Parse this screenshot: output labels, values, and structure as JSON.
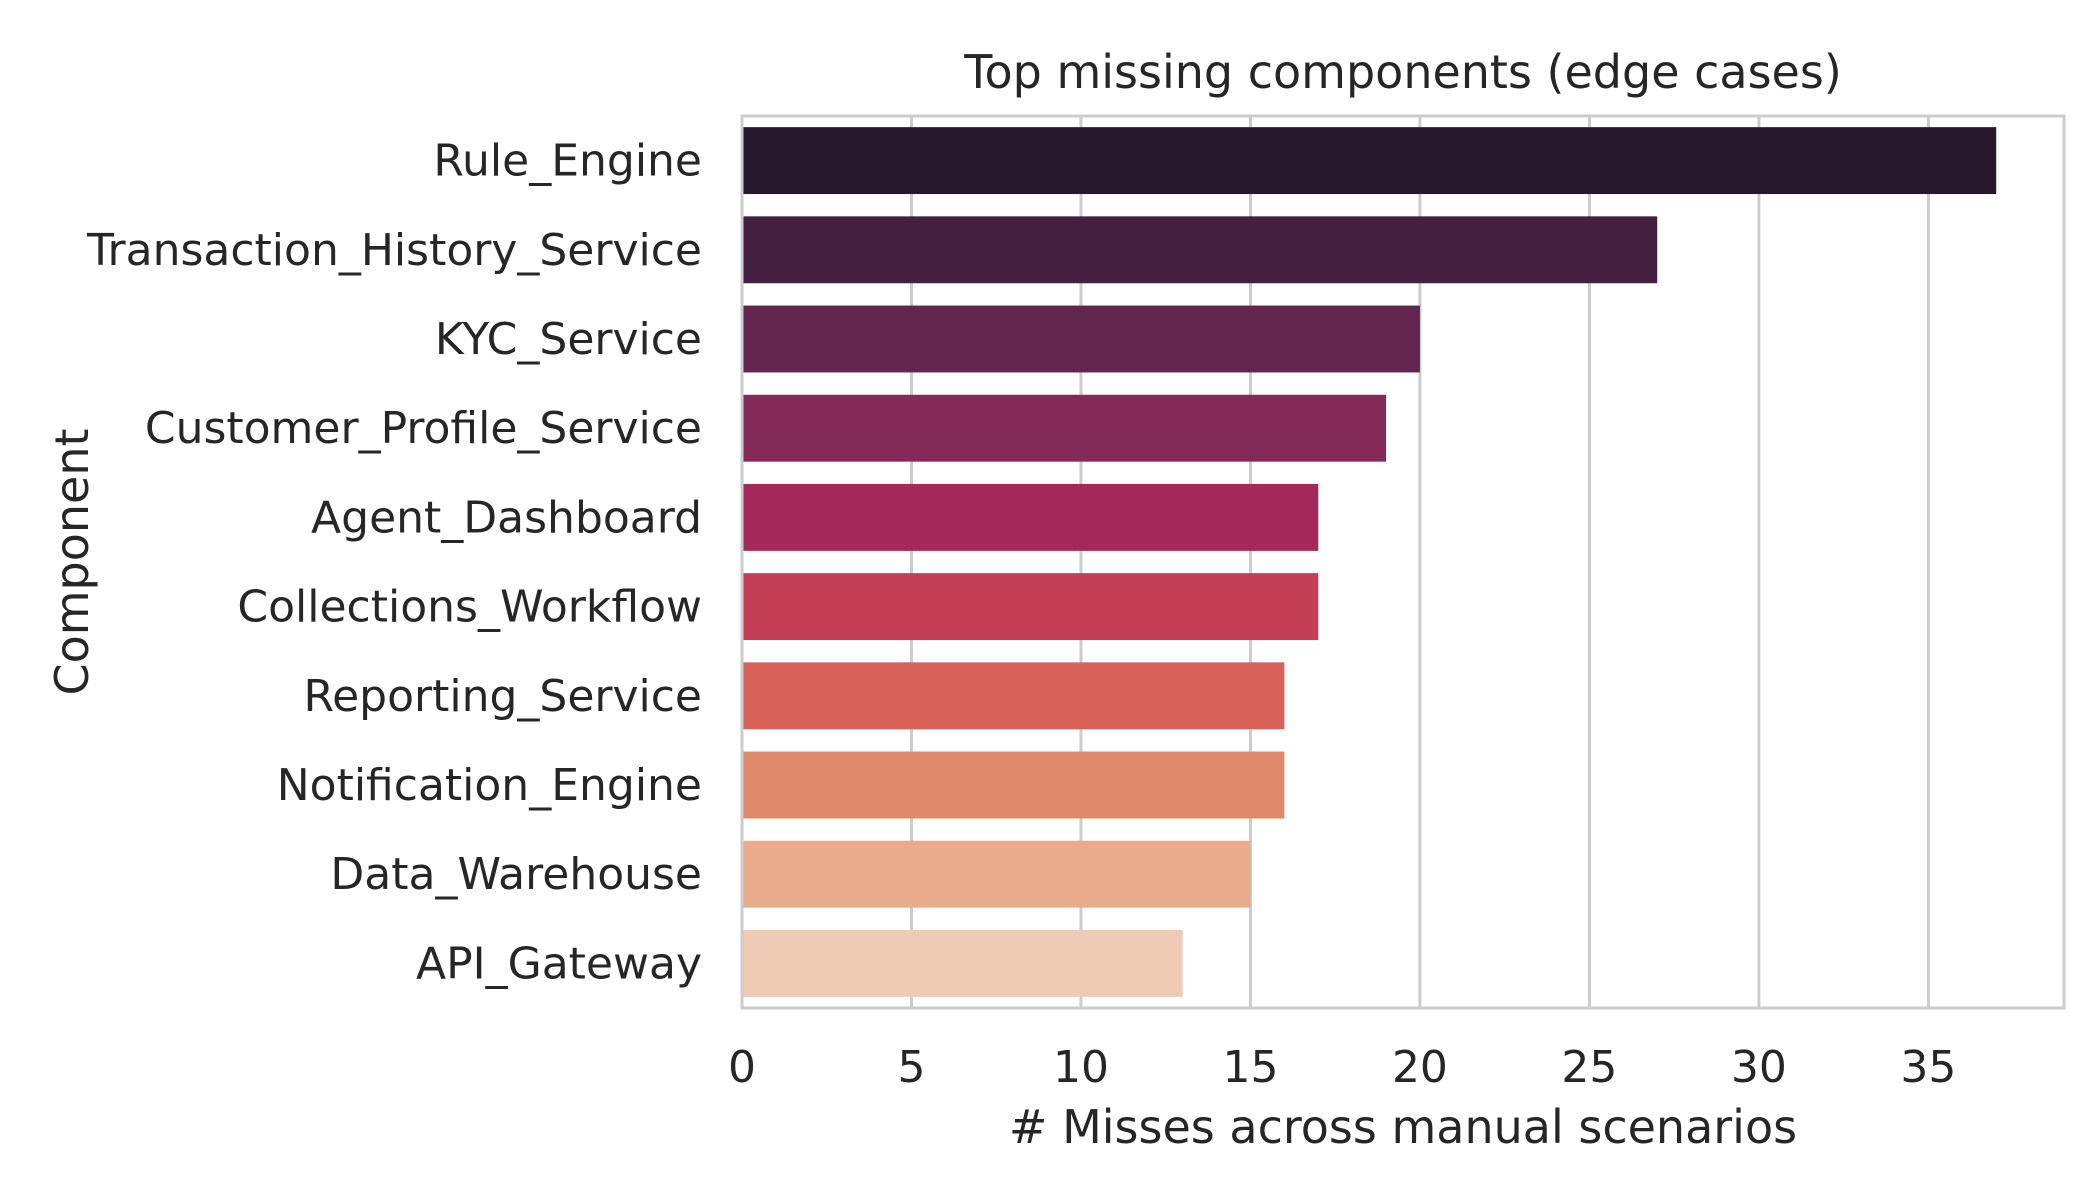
{
  "chart_data": {
    "type": "bar",
    "orientation": "horizontal",
    "title": "Top missing components (edge cases)",
    "xlabel": "# Misses across manual scenarios",
    "ylabel": "Component",
    "xlim": [
      0,
      39
    ],
    "xticks": [
      0,
      5,
      10,
      15,
      20,
      25,
      30,
      35
    ],
    "grid": true,
    "categories": [
      "Rule_Engine",
      "Transaction_History_Service",
      "KYC_Service",
      "Customer_Profile_Service",
      "Agent_Dashboard",
      "Collections_Workflow",
      "Reporting_Service",
      "Notification_Engine",
      "Data_Warehouse",
      "API_Gateway"
    ],
    "values": [
      37,
      27,
      20,
      19,
      17,
      17,
      16,
      16,
      15,
      13
    ],
    "colors": [
      "#26172d",
      "#43203f",
      "#62264e",
      "#842a59",
      "#a3295a",
      "#c33d54",
      "#d86259",
      "#e0886a",
      "#e8ab8c",
      "#efcbb5"
    ]
  }
}
